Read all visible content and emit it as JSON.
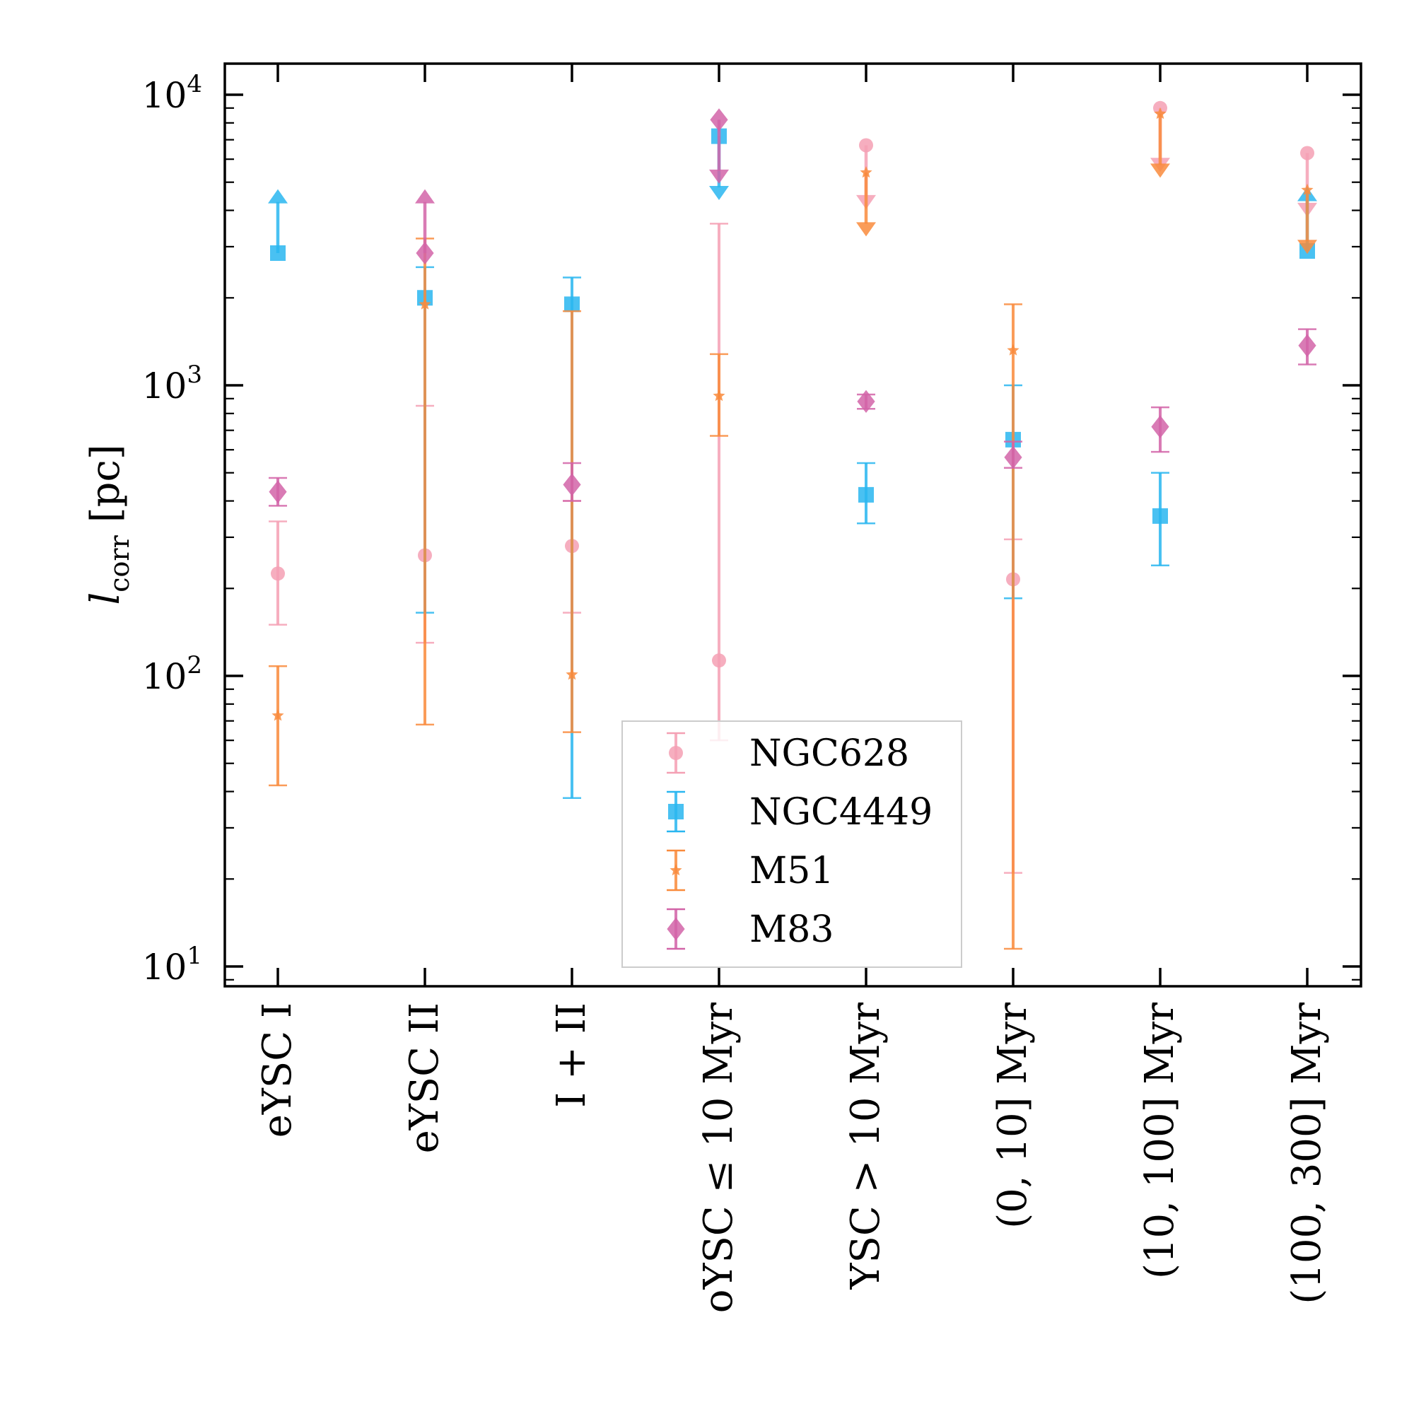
{
  "chart_data": {
    "type": "scatter",
    "yscale": "log",
    "ylim": [
      8.5,
      12500
    ],
    "ylabel": {
      "main": "l",
      "sub": "corr",
      "unit": "[pc]"
    },
    "yticks": [
      {
        "base": "10",
        "exp": "1",
        "value": 10
      },
      {
        "base": "10",
        "exp": "2",
        "value": 100
      },
      {
        "base": "10",
        "exp": "3",
        "value": 1000
      },
      {
        "base": "10",
        "exp": "4",
        "value": 10000
      }
    ],
    "categories": [
      "eYSC I",
      "eYSC II",
      "I + II",
      "oYSC ≤ 10 Myr",
      "YSC > 10 Myr",
      "(0, 10] Myr",
      "(10, 100] Myr",
      "(100, 300] Myr"
    ],
    "series": [
      {
        "name": "NGC628",
        "marker": "circle",
        "color": "#f4a0b4",
        "points": [
          {
            "cat": 0,
            "value": 225,
            "lo": 150,
            "hi": 340
          },
          {
            "cat": 1,
            "value": 260,
            "lo": 130,
            "hi": 850
          },
          {
            "cat": 2,
            "value": 280,
            "lo": 165,
            "hi": 400
          },
          {
            "cat": 3,
            "value": 113,
            "lo": 60,
            "hi": 3600
          },
          {
            "cat": 4,
            "value": 6700,
            "upper": true
          },
          {
            "cat": 5,
            "value": 215,
            "lo": 21,
            "hi": 295
          },
          {
            "cat": 6,
            "value": 9000,
            "upper": true
          },
          {
            "cat": 7,
            "value": 6300,
            "upper": true
          }
        ]
      },
      {
        "name": "NGC4449",
        "marker": "square",
        "color": "#29b6f0",
        "points": [
          {
            "cat": 0,
            "value": 2850,
            "lower": true
          },
          {
            "cat": 1,
            "value": 2000,
            "lo": 165,
            "hi": 2550
          },
          {
            "cat": 2,
            "value": 1900,
            "lo": 38,
            "hi": 2350
          },
          {
            "cat": 3,
            "value": 7200,
            "upper": true
          },
          {
            "cat": 4,
            "value": 420,
            "lo": 335,
            "hi": 540
          },
          {
            "cat": 5,
            "value": 650,
            "lo": 185,
            "hi": 1000
          },
          {
            "cat": 6,
            "value": 355,
            "lo": 240,
            "hi": 500
          },
          {
            "cat": 7,
            "value": 2900,
            "lower": true
          }
        ]
      },
      {
        "name": "M51",
        "marker": "star",
        "color": "#f98b3c",
        "points": [
          {
            "cat": 0,
            "value": 73,
            "lo": 42,
            "hi": 108
          },
          {
            "cat": 1,
            "value": 1900,
            "lo": 68,
            "hi": 3200
          },
          {
            "cat": 2,
            "value": 101,
            "lo": 64,
            "hi": 1800
          },
          {
            "cat": 3,
            "value": 920,
            "lo": 670,
            "hi": 1280
          },
          {
            "cat": 4,
            "value": 5400,
            "upper": true
          },
          {
            "cat": 5,
            "value": 1320,
            "lo": 11.5,
            "hi": 1900
          },
          {
            "cat": 6,
            "value": 8600,
            "upper": true
          },
          {
            "cat": 7,
            "value": 4700,
            "upper": true
          }
        ]
      },
      {
        "name": "M83",
        "marker": "diamond",
        "color": "#d264a8",
        "points": [
          {
            "cat": 0,
            "value": 430,
            "lo": 385,
            "hi": 480
          },
          {
            "cat": 1,
            "value": 2850,
            "lower": true
          },
          {
            "cat": 2,
            "value": 455,
            "lo": 400,
            "hi": 540
          },
          {
            "cat": 3,
            "value": 8200,
            "upper": true
          },
          {
            "cat": 4,
            "value": 880,
            "lo": 830,
            "hi": 930
          },
          {
            "cat": 5,
            "value": 565,
            "lo": 520,
            "hi": 640
          },
          {
            "cat": 6,
            "value": 720,
            "lo": 590,
            "hi": 840
          },
          {
            "cat": 7,
            "value": 1370,
            "lo": 1180,
            "hi": 1560
          }
        ]
      }
    ],
    "legend": {
      "position": "lower-center",
      "entries": [
        "NGC628",
        "NGC4449",
        "M51",
        "M83"
      ]
    }
  }
}
